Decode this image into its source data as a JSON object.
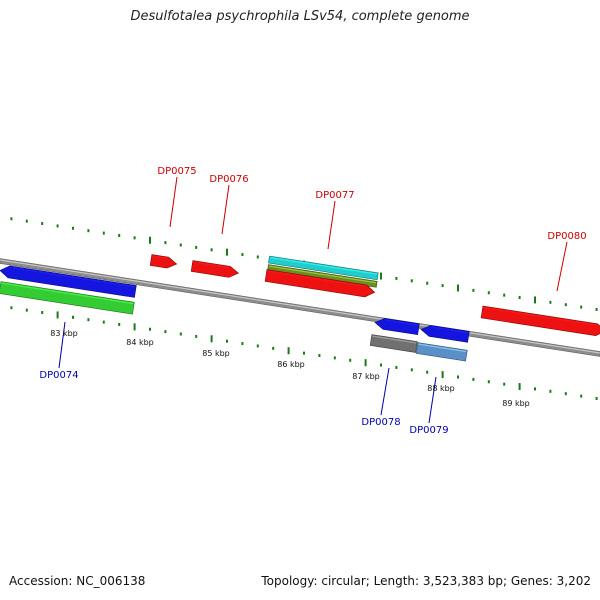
{
  "title": "Desulfotalea psychrophila LSv54, complete genome",
  "footer": {
    "accession": "Accession: NC_006138",
    "summary": "Topology: circular; Length: 3,523,383 bp; Genes: 3,202"
  },
  "colors": {
    "forward_label": "#cc0000",
    "reverse_label": "#0000aa",
    "tick": "#1a7a1a",
    "backbone": "#888888"
  },
  "ruler": {
    "labels": [
      "83 kbp",
      "84 kbp",
      "85 kbp",
      "86 kbp",
      "87 kbp",
      "88 kbp",
      "89 kbp"
    ]
  },
  "genes": [
    {
      "id": "DP0074",
      "color": "#1515e0",
      "strand": "reverse",
      "type": "gene"
    },
    {
      "id": "DP0074",
      "color": "#33cc33",
      "strand": "reverse",
      "type": "CDS"
    },
    {
      "id": "DP0075",
      "color": "#ee1111",
      "strand": "forward",
      "type": "gene"
    },
    {
      "id": "DP0076",
      "color": "#ee1111",
      "strand": "forward",
      "type": "gene"
    },
    {
      "id": "DP0077",
      "color": "#22cccc",
      "strand": "forward",
      "type": "tRNA"
    },
    {
      "id": "DP0077",
      "color": "#6b8e23",
      "strand": "forward",
      "type": "misc"
    },
    {
      "id": "DP0077",
      "color": "#ee1111",
      "strand": "forward",
      "type": "gene"
    },
    {
      "id": "DP0078",
      "color": "#1515e0",
      "strand": "reverse",
      "type": "gene"
    },
    {
      "id": "DP0078",
      "color": "#707070",
      "strand": "reverse",
      "type": "CDS"
    },
    {
      "id": "DP0079",
      "color": "#1515e0",
      "strand": "reverse",
      "type": "gene"
    },
    {
      "id": "DP0079",
      "color": "#5a8fc7",
      "strand": "reverse",
      "type": "CDS"
    },
    {
      "id": "DP0080",
      "color": "#ee1111",
      "strand": "forward",
      "type": "gene"
    }
  ],
  "gene_labels": [
    {
      "text": "DP0074",
      "strand": "reverse"
    },
    {
      "text": "DP0075",
      "strand": "forward"
    },
    {
      "text": "DP0076",
      "strand": "forward"
    },
    {
      "text": "DP0077",
      "strand": "forward"
    },
    {
      "text": "DP0078",
      "strand": "reverse"
    },
    {
      "text": "DP0079",
      "strand": "reverse"
    },
    {
      "text": "DP0080",
      "strand": "forward"
    }
  ]
}
